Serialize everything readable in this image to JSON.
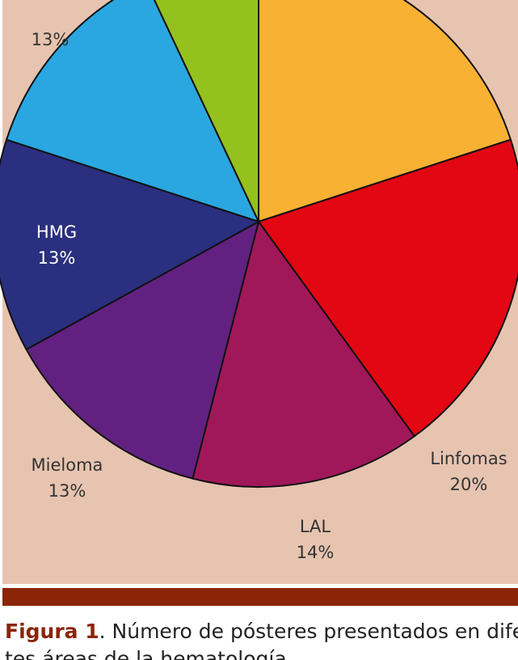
{
  "chart_data": {
    "type": "pie",
    "categories": [
      null,
      "Linfomas",
      "LAL",
      "Mieloma",
      "HMG",
      null,
      null
    ],
    "values": [
      20,
      20,
      14,
      13,
      13,
      13,
      7
    ],
    "value_labels": [
      null,
      "20%",
      "14%",
      "13%",
      "13%",
      "13%",
      null
    ],
    "colors": [
      "#f8b133",
      "#e30613",
      "#a0185a",
      "#622181",
      "#2a2f7f",
      "#2aa7e0",
      "#95c11f"
    ],
    "caption": {
      "label": "Figura 1",
      "lines": [
        ". Número de pósteres presentados en diferen-",
        "tes áreas de la hematología."
      ]
    }
  }
}
